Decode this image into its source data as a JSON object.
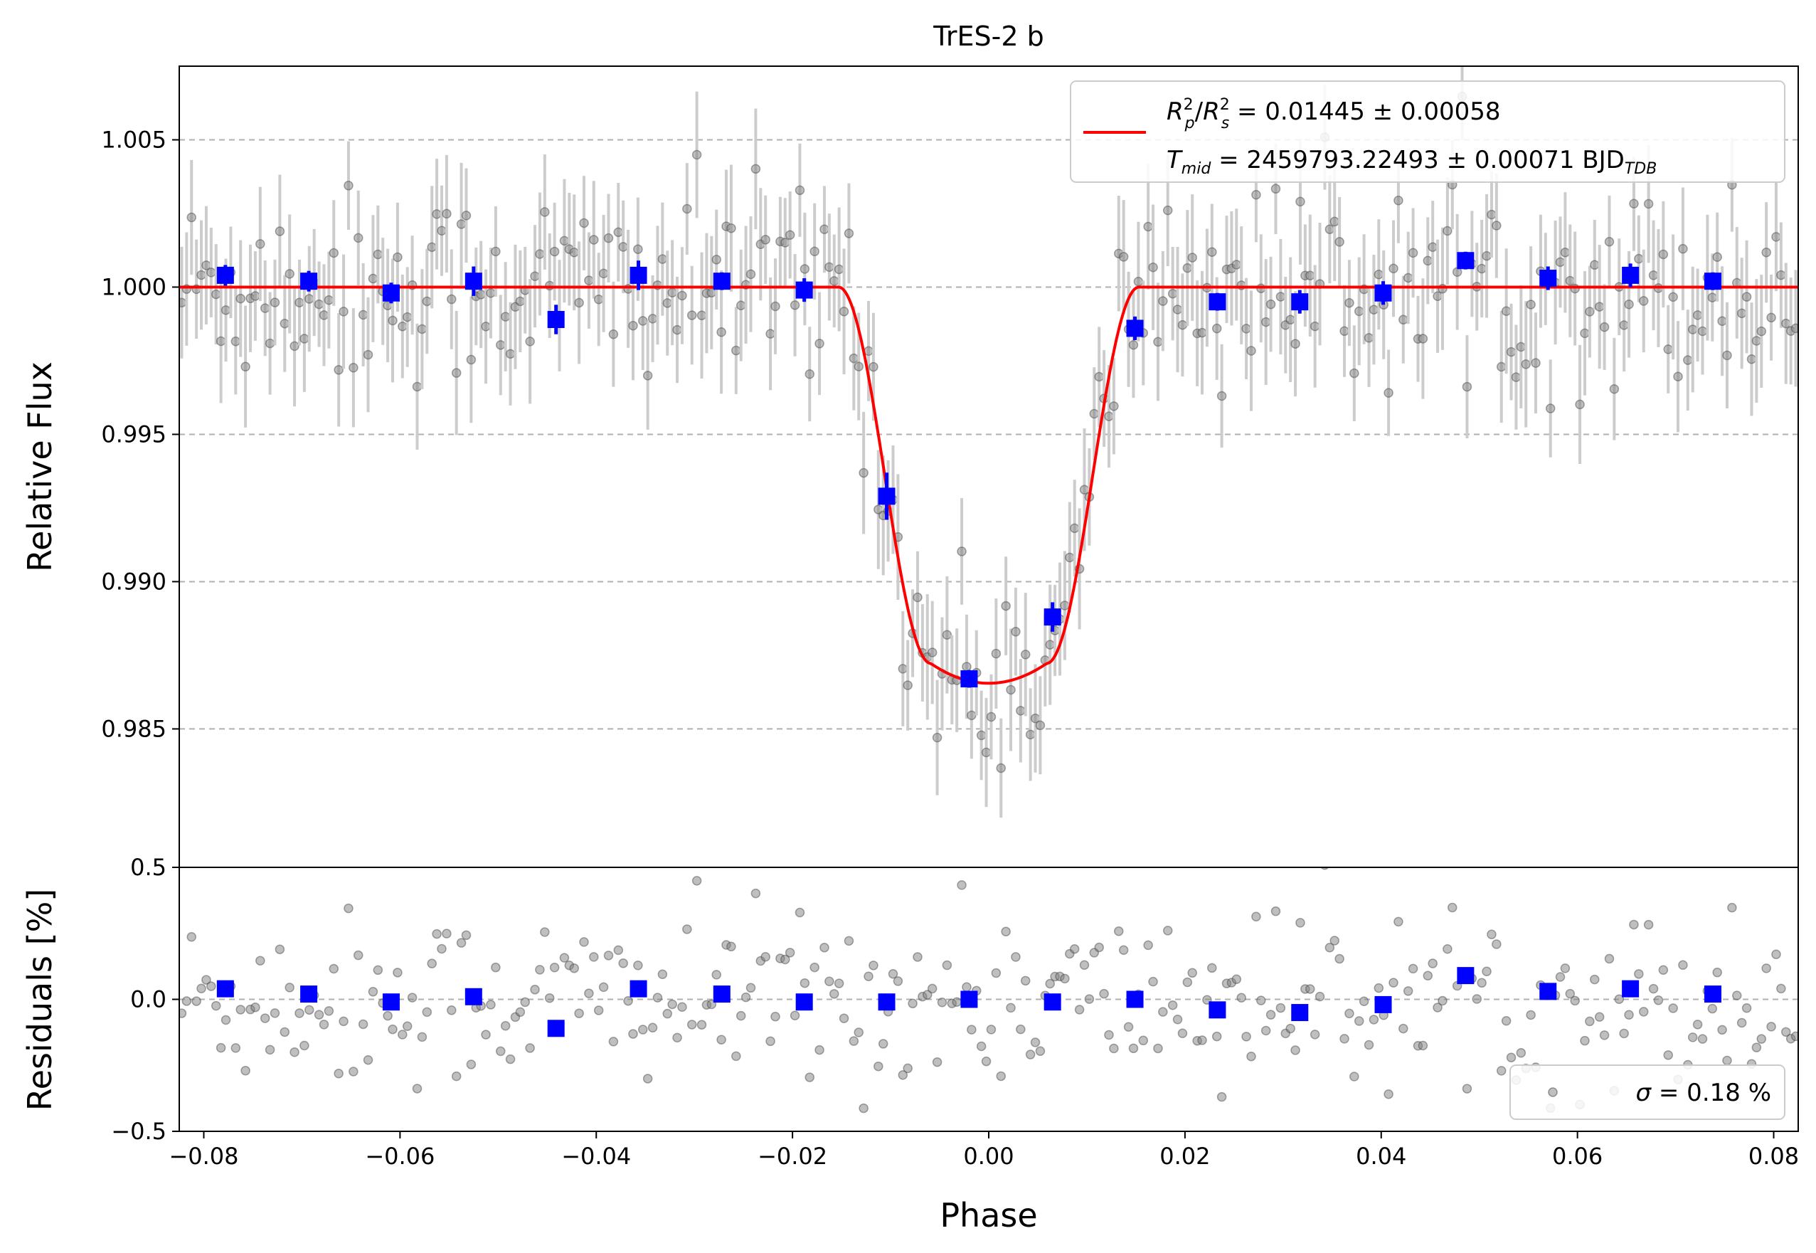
{
  "chart_data": [
    {
      "type": "scatter",
      "panel": "transit",
      "title": "TrES-2 b",
      "xlabel": "",
      "ylabel": "Relative Flux",
      "xlim": [
        -0.0825,
        0.0825
      ],
      "ylim": [
        0.9803,
        1.0075
      ],
      "yticks": [
        0.985,
        0.99,
        0.995,
        1.0,
        1.005
      ],
      "ytick_labels": [
        "0.985",
        "0.990",
        "0.995",
        "1.000",
        "1.005"
      ],
      "grid": "horizontal dashed",
      "legend_position": "top-right",
      "legend": {
        "line1_sym": "R",
        "line1_sup1": "2",
        "line1_sub1": "p",
        "line1_slash": "/",
        "line1_sup2": "2",
        "line1_sub2": "s",
        "line1_value": " = 0.01445 ± 0.00058",
        "line2_sym": "T",
        "line2_sub": "mid",
        "line2_value": " = 2459793.22493 ± 0.00071 BJD",
        "line2_unit_sub": "TDB"
      },
      "model": {
        "color": "#ff0000",
        "baseline": 1.0,
        "depth": 0.01345,
        "t1": 0.0153,
        "t2": 0.0059
      },
      "binned": {
        "color": "#0000ff",
        "x": [
          -0.0778,
          -0.0693,
          -0.0609,
          -0.0525,
          -0.0441,
          -0.0357,
          -0.0272,
          -0.0188,
          -0.0104,
          -0.002,
          0.0065,
          0.0149,
          0.0233,
          0.0317,
          0.0402,
          0.0486,
          0.057,
          0.0654,
          0.0738
        ],
        "y": [
          1.0004,
          1.0002,
          0.9998,
          1.0002,
          0.9989,
          1.0004,
          1.0002,
          0.9999,
          0.9929,
          0.9867,
          0.9888,
          0.9986,
          0.9995,
          0.9995,
          0.9998,
          1.0009,
          1.0003,
          1.0004,
          1.0002
        ],
        "err": [
          0.00035,
          0.00035,
          0.00035,
          0.0005,
          0.0005,
          0.0005,
          0.0003,
          0.0004,
          0.0008,
          0.0003,
          0.0005,
          0.0004,
          0.0003,
          0.0004,
          0.0004,
          0.0003,
          0.0004,
          0.0004,
          0.0003
        ]
      },
      "raw": {
        "color": "#808080",
        "errbar_color": "#cccccc",
        "n": 330,
        "typical_err": 0.0018
      }
    },
    {
      "type": "scatter",
      "panel": "residuals",
      "xlabel": "Phase",
      "ylabel": "Residuals [%]",
      "xlim": [
        -0.0825,
        0.0825
      ],
      "ylim": [
        -0.5,
        0.5
      ],
      "yticks": [
        -0.5,
        0.0,
        0.5
      ],
      "ytick_labels": [
        "−0.5",
        "0.0",
        "0.5"
      ],
      "xticks": [
        -0.08,
        -0.06,
        -0.04,
        -0.02,
        0.0,
        0.02,
        0.04,
        0.06,
        0.08
      ],
      "xtick_labels": [
        "−0.08",
        "−0.06",
        "−0.04",
        "−0.02",
        "0.00",
        "0.02",
        "0.04",
        "0.06",
        "0.08"
      ],
      "grid": "horizontal dashed",
      "legend_position": "bottom-right",
      "legend": {
        "sigma_sym": "σ",
        "sigma_text": " = 0.18 %"
      },
      "binned": {
        "color": "#0000ff",
        "x": [
          -0.0778,
          -0.0693,
          -0.0609,
          -0.0525,
          -0.0441,
          -0.0357,
          -0.0272,
          -0.0188,
          -0.0104,
          -0.002,
          0.0065,
          0.0149,
          0.0233,
          0.0317,
          0.0402,
          0.0486,
          0.057,
          0.0654,
          0.0738
        ],
        "y": [
          0.04,
          0.02,
          -0.01,
          0.01,
          -0.11,
          0.04,
          0.02,
          -0.01,
          -0.01,
          0.0,
          -0.01,
          0.0,
          -0.04,
          -0.05,
          -0.02,
          0.09,
          0.03,
          0.04,
          0.02
        ]
      },
      "raw": {
        "color": "#808080",
        "sigma": 0.18
      }
    }
  ]
}
